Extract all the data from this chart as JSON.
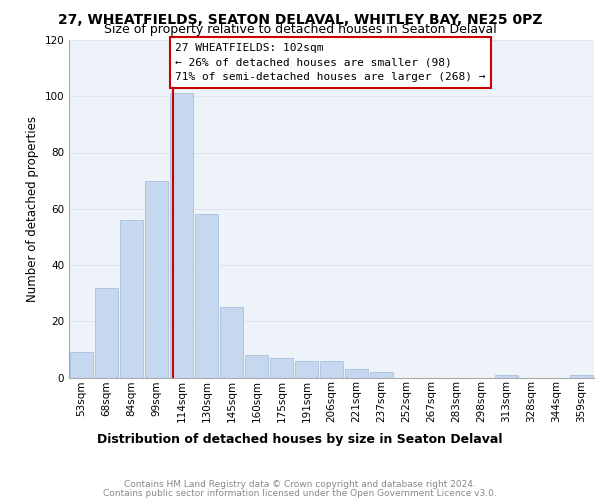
{
  "title": "27, WHEATFIELDS, SEATON DELAVAL, WHITLEY BAY, NE25 0PZ",
  "subtitle": "Size of property relative to detached houses in Seaton Delaval",
  "xlabel": "Distribution of detached houses by size in Seaton Delaval",
  "ylabel": "Number of detached properties",
  "bar_labels": [
    "53sqm",
    "68sqm",
    "84sqm",
    "99sqm",
    "114sqm",
    "130sqm",
    "145sqm",
    "160sqm",
    "175sqm",
    "191sqm",
    "206sqm",
    "221sqm",
    "237sqm",
    "252sqm",
    "267sqm",
    "283sqm",
    "298sqm",
    "313sqm",
    "328sqm",
    "344sqm",
    "359sqm"
  ],
  "bar_values": [
    9,
    32,
    56,
    70,
    101,
    58,
    25,
    8,
    7,
    6,
    6,
    3,
    2,
    0,
    0,
    0,
    0,
    1,
    0,
    0,
    1
  ],
  "bar_color": "#c5d8f0",
  "bar_edge_color": "#a0b8d8",
  "grid_color": "#dce6f0",
  "bg_color": "#eef3fa",
  "vline_x_index": 3.65,
  "vline_color": "#cc0000",
  "annotation_text": "27 WHEATFIELDS: 102sqm\n← 26% of detached houses are smaller (98)\n71% of semi-detached houses are larger (268) →",
  "annotation_box_color": "#cc0000",
  "ylim": [
    0,
    120
  ],
  "yticks": [
    0,
    20,
    40,
    60,
    80,
    100,
    120
  ],
  "footnote_line1": "Contains HM Land Registry data © Crown copyright and database right 2024.",
  "footnote_line2": "Contains public sector information licensed under the Open Government Licence v3.0.",
  "title_fontsize": 10,
  "subtitle_fontsize": 9,
  "ylabel_fontsize": 8.5,
  "xlabel_fontsize": 9,
  "tick_fontsize": 7.5,
  "annotation_fontsize": 8,
  "footnote_fontsize": 6.5
}
